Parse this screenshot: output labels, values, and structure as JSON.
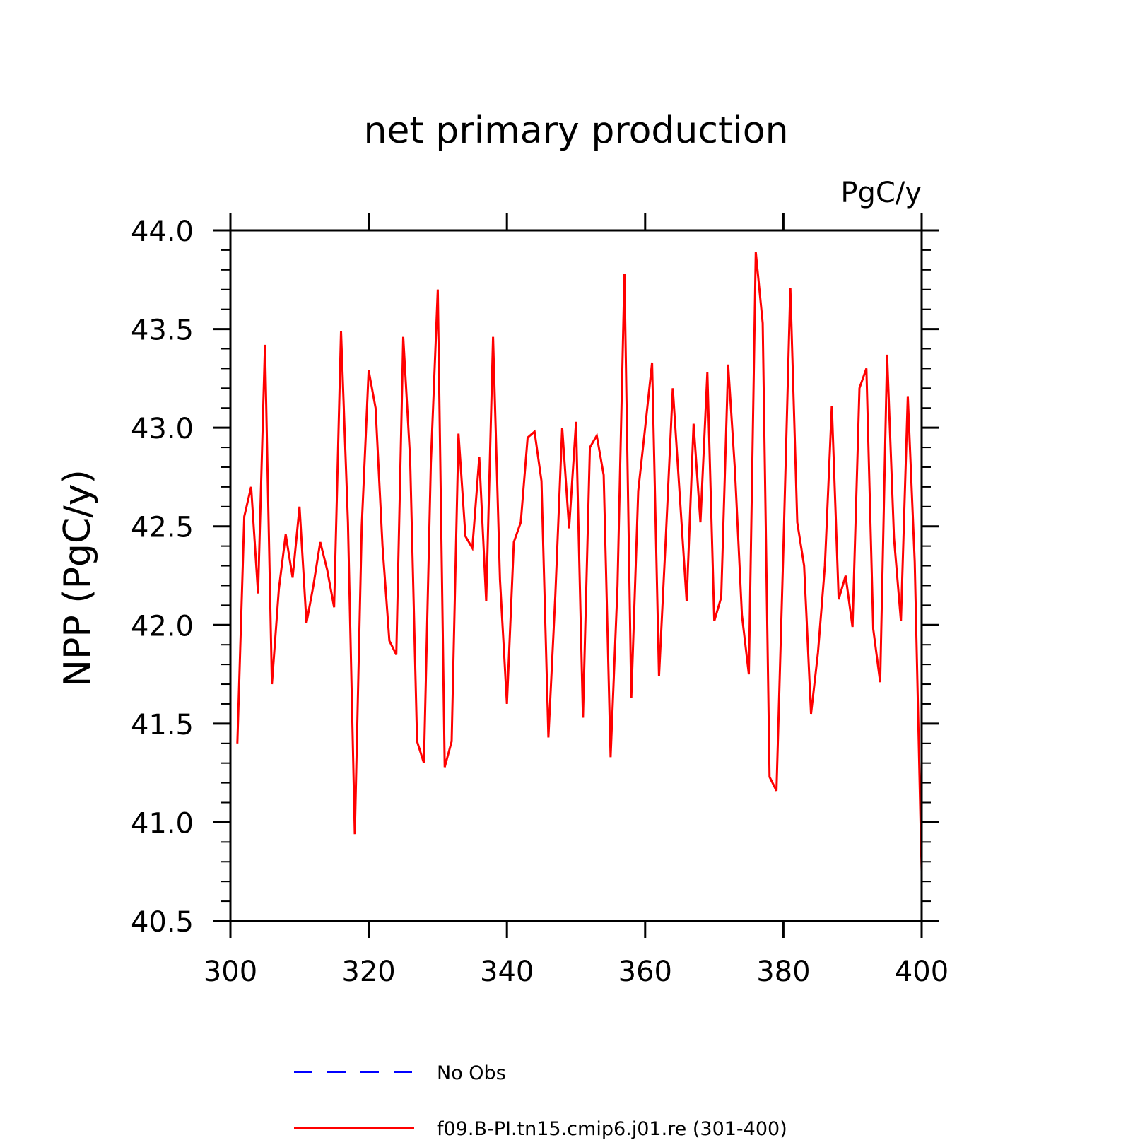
{
  "chart_data": {
    "type": "line",
    "title": "net primary production",
    "units_label": "PgC/y",
    "ylabel": "NPP   (PgC/y)",
    "xlabel": "",
    "xlim": [
      300,
      400
    ],
    "ylim": [
      40.5,
      44.0
    ],
    "x_ticks": [
      "300",
      "320",
      "340",
      "360",
      "380",
      "400"
    ],
    "y_ticks": [
      "40.5",
      "41.0",
      "41.5",
      "42.0",
      "42.5",
      "43.0",
      "43.5",
      "44.0"
    ],
    "grid": false,
    "legend_position": "bottom",
    "series": [
      {
        "name": "No Obs",
        "color": "#0000ff",
        "dashed": true,
        "values": []
      },
      {
        "name": "f09.B-PI.tn15.cmip6.j01.re (301-400)",
        "color": "#ff0000",
        "dashed": false,
        "x_start": 301,
        "values": [
          41.4,
          42.55,
          42.7,
          42.16,
          43.42,
          41.7,
          42.18,
          42.46,
          42.24,
          42.6,
          42.01,
          42.2,
          42.42,
          42.28,
          42.09,
          43.49,
          42.52,
          40.94,
          42.5,
          43.29,
          43.1,
          42.4,
          41.92,
          41.85,
          43.46,
          42.84,
          41.41,
          41.3,
          42.82,
          43.7,
          41.28,
          41.41,
          42.97,
          42.45,
          42.39,
          42.85,
          42.12,
          43.46,
          42.23,
          41.6,
          42.42,
          42.52,
          42.95,
          42.98,
          42.73,
          41.43,
          42.15,
          43.0,
          42.49,
          43.03,
          41.53,
          42.9,
          42.96,
          42.76,
          41.33,
          42.2,
          43.78,
          41.63,
          42.68,
          43.0,
          43.33,
          41.74,
          42.45,
          43.2,
          42.66,
          42.12,
          43.02,
          42.52,
          43.28,
          42.02,
          42.14,
          43.32,
          42.78,
          42.05,
          41.75,
          43.89,
          43.53,
          41.23,
          41.16,
          42.39,
          43.71,
          42.52,
          42.3,
          41.55,
          41.86,
          42.3,
          43.11,
          42.13,
          42.25,
          41.99,
          43.2,
          43.3,
          41.98,
          41.71,
          43.37,
          42.44,
          42.02,
          43.16,
          42.32,
          40.75
        ]
      }
    ]
  }
}
